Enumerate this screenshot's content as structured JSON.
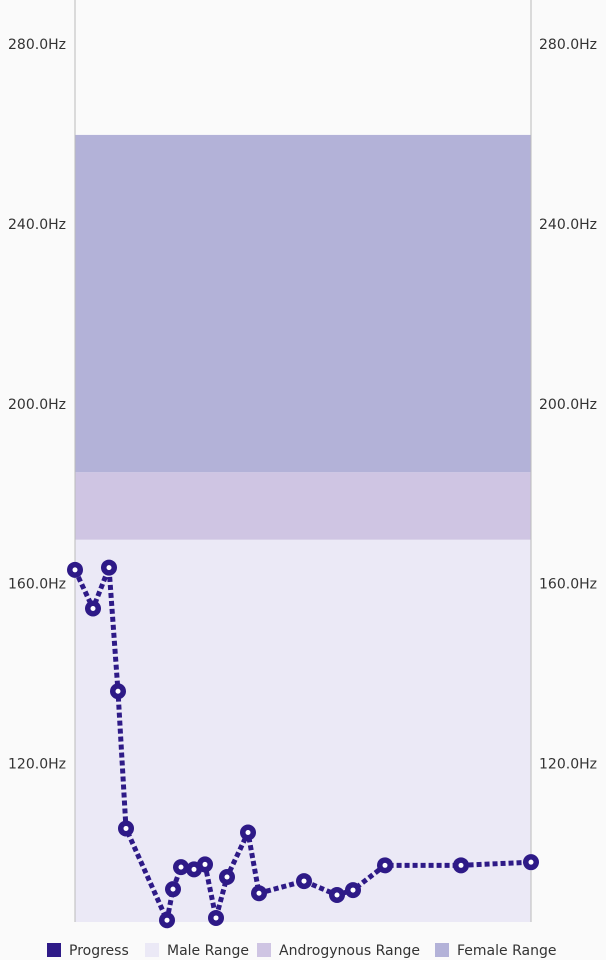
{
  "chart_data": {
    "type": "line",
    "x": [
      0,
      18,
      34,
      43,
      51,
      92,
      98,
      106,
      119,
      130,
      141,
      152,
      173,
      184,
      229,
      262,
      278,
      310,
      386,
      456
    ],
    "xlim": [
      0,
      456
    ],
    "series": [
      {
        "name": "Progress",
        "color": "#2e1a87",
        "values": [
          163.3,
          154.7,
          163.8,
          136.3,
          105.8,
          85.4,
          92.3,
          97.2,
          96.7,
          97.8,
          85.9,
          95.0,
          104.9,
          91.4,
          94.1,
          91.0,
          92.1,
          97.6,
          97.6,
          98.3
        ]
      }
    ],
    "bands": [
      {
        "name": "Male Range",
        "color": "#ebe9f6",
        "range": [
          85,
          170
        ]
      },
      {
        "name": "Androgynous Range",
        "color": "#cfc5e3",
        "range": [
          170,
          185
        ]
      },
      {
        "name": "Female Range",
        "color": "#b3b2d8",
        "range": [
          185,
          260
        ]
      }
    ],
    "ylim": [
      85,
      290
    ],
    "yticks": [
      {
        "value": 120,
        "label": "120.0Hz"
      },
      {
        "value": 160,
        "label": "160.0Hz"
      },
      {
        "value": 200,
        "label": "200.0Hz"
      },
      {
        "value": 240,
        "label": "240.0Hz"
      },
      {
        "value": 280,
        "label": "280.0Hz"
      }
    ]
  }
}
